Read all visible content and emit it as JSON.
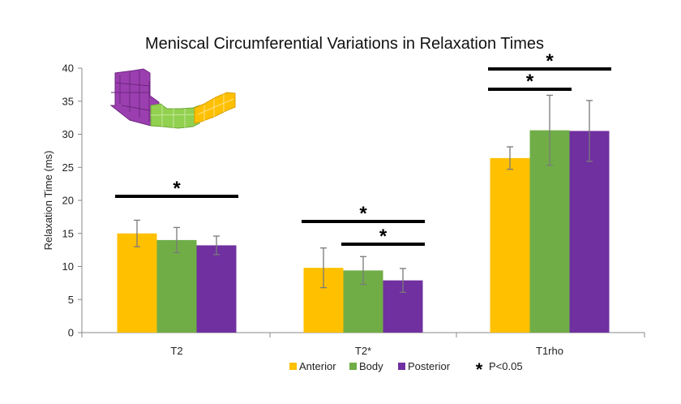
{
  "chart_data": {
    "type": "bar",
    "title": "Meniscal Circumferential Variations in Relaxation Times",
    "xlabel": "",
    "ylabel": "Relaxation Time (ms)",
    "ylim": [
      0,
      40
    ],
    "yticks": [
      0,
      5,
      10,
      15,
      20,
      25,
      30,
      35,
      40
    ],
    "categories": [
      "T2",
      "T2*",
      "T1rho"
    ],
    "series": [
      {
        "name": "Anterior",
        "color": "#FFC000",
        "values": [
          15.0,
          9.8,
          26.4
        ],
        "errors": [
          2.0,
          3.0,
          1.7
        ]
      },
      {
        "name": "Body",
        "color": "#70AD47",
        "values": [
          14.0,
          9.4,
          30.6
        ],
        "errors": [
          1.9,
          2.1,
          5.3
        ]
      },
      {
        "name": "Posterior",
        "color": "#7030A0",
        "values": [
          13.2,
          7.9,
          30.5
        ],
        "errors": [
          1.4,
          1.8,
          4.6
        ]
      }
    ],
    "significance": [
      {
        "category": "T2",
        "from": "Anterior",
        "to": "Posterior",
        "label": "*"
      },
      {
        "category": "T2*",
        "from": "Anterior",
        "to": "Posterior",
        "label": "*"
      },
      {
        "category": "T2*",
        "from": "Body",
        "to": "Posterior",
        "label": "*"
      },
      {
        "category": "T1rho",
        "from": "Anterior",
        "to": "Body",
        "label": "*"
      },
      {
        "category": "T1rho",
        "from": "Anterior",
        "to": "Posterior",
        "label": "*"
      }
    ],
    "legend": {
      "items": [
        "Anterior",
        "Body",
        "Posterior"
      ],
      "significance_symbol": "*",
      "significance_label": "P<0.05",
      "placement": "bottom"
    },
    "inset": {
      "description_icon": "meniscus-segments-icon",
      "colors": [
        "#9B3FB0",
        "#92D050",
        "#FFC000"
      ]
    }
  }
}
